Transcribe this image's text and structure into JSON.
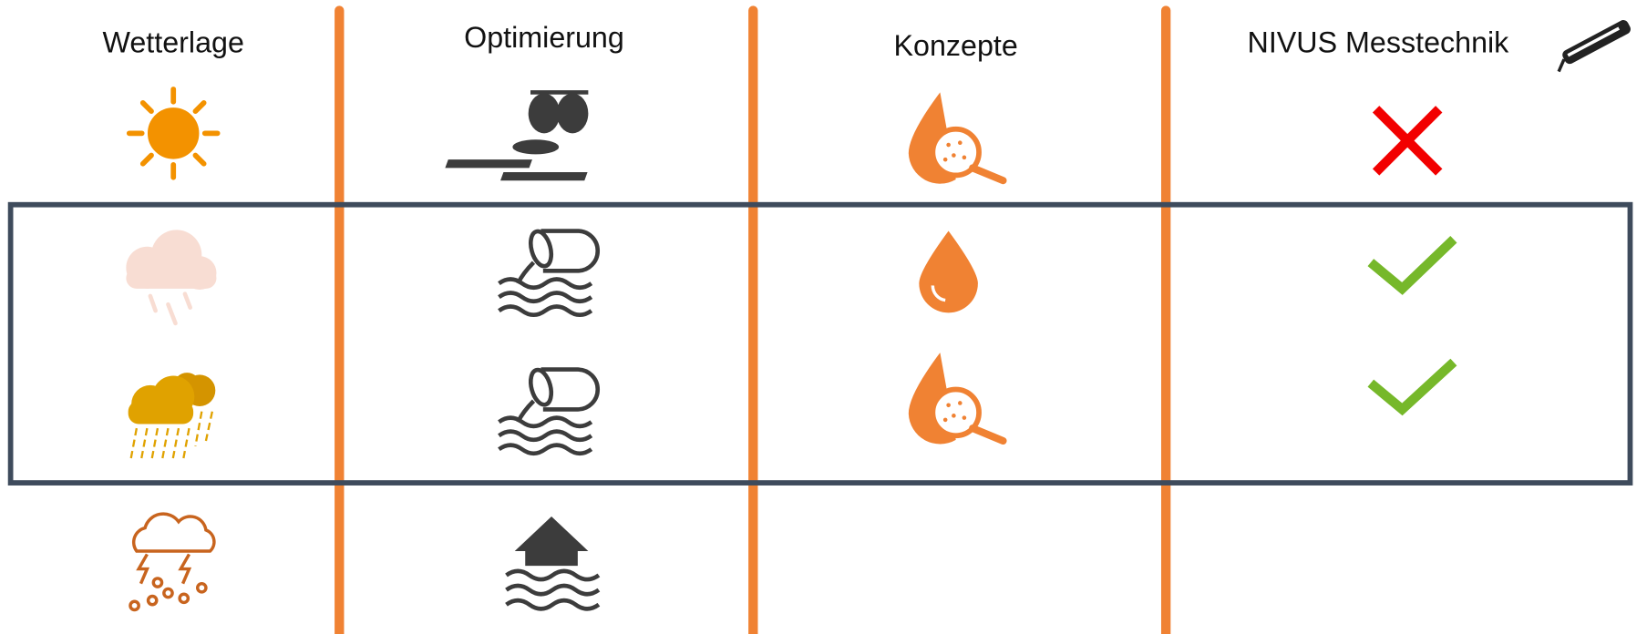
{
  "columns": [
    "Wetterlage",
    "Optimierung",
    "Konzepte",
    "NIVUS Messtechnik"
  ]
}
